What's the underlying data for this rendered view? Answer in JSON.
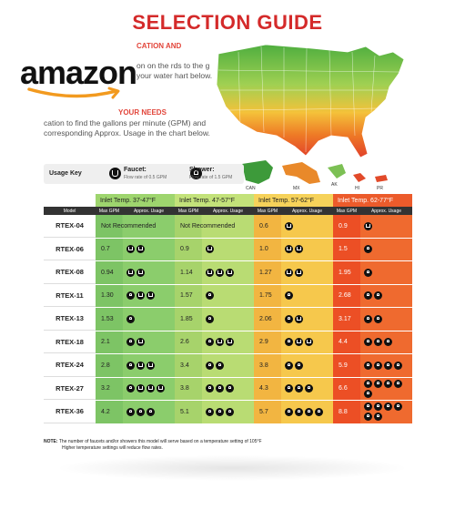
{
  "title": "SELECTION GUIDE",
  "amazon_logo_text": "amazon",
  "intro": {
    "heading1": "CATION AND",
    "para1": "on on the rds to the g your water hart below.",
    "heading2": "YOUR NEEDS",
    "para2": "cation to find the gallons per minute (GPM) and corresponding Approx. Usage in the chart below."
  },
  "map_labels": [
    "CAN",
    "MX",
    "AK",
    "HI",
    "PR"
  ],
  "usage_key": {
    "label": "Usage Key",
    "faucet_label": "Faucet:",
    "faucet_rate": "Flow rate of 0.5 GPM",
    "shower_label": "Shower:",
    "shower_rate": "Flow rate of 1.5 GPM"
  },
  "table": {
    "model_header": "Model",
    "max_gpm_header": "Max GPM",
    "usage_header": "Approx. Usage",
    "bands": [
      {
        "label": "Inlet Temp. 37-47°F",
        "head": "#9ed56e",
        "gpm": "#7dc465",
        "usage": "#8bcd6c"
      },
      {
        "label": "Inlet Temp. 47-57°F",
        "head": "#c3e27a",
        "gpm": "#a7d36b",
        "usage": "#b9dc73"
      },
      {
        "label": "Inlet Temp. 57-62°F",
        "head": "#f6d25a",
        "gpm": "#f2b541",
        "usage": "#f6c84c"
      },
      {
        "label": "Inlet Temp. 62-77°F",
        "head": "#ec5b2b",
        "gpm": "#ec4f25",
        "usage": "#ef6a2f"
      }
    ],
    "not_recommended": "Not Recommended",
    "rows": [
      {
        "model": "RTEX-04",
        "gpm": [
          "",
          "",
          "0.6",
          "0.9"
        ],
        "usage": [
          "",
          "",
          "f",
          "f"
        ],
        "nr": [
          true,
          true,
          false,
          false
        ]
      },
      {
        "model": "RTEX-06",
        "gpm": [
          "0.7",
          "0.9",
          "1.0",
          "1.5"
        ],
        "usage": [
          "ff",
          "f",
          "ff",
          "s"
        ],
        "nr": [
          false,
          false,
          false,
          false
        ]
      },
      {
        "model": "RTEX-08",
        "gpm": [
          "0.94",
          "1.14",
          "1.27",
          "1.95"
        ],
        "usage": [
          "ff",
          "fff",
          "ff",
          "s"
        ],
        "nr": [
          false,
          false,
          false,
          false
        ]
      },
      {
        "model": "RTEX-11",
        "gpm": [
          "1.30",
          "1.57",
          "1.75",
          "2.68"
        ],
        "usage": [
          "sff",
          "s",
          "s",
          "ss"
        ],
        "nr": [
          false,
          false,
          false,
          false
        ]
      },
      {
        "model": "RTEX-13",
        "gpm": [
          "1.53",
          "1.85",
          "2.06",
          "3.17"
        ],
        "usage": [
          "s",
          "s",
          "sf",
          "ss"
        ],
        "nr": [
          false,
          false,
          false,
          false
        ]
      },
      {
        "model": "RTEX-18",
        "gpm": [
          "2.1",
          "2.6",
          "2.9",
          "4.4"
        ],
        "usage": [
          "sf",
          "sff",
          "sff",
          "sss"
        ],
        "nr": [
          false,
          false,
          false,
          false
        ]
      },
      {
        "model": "RTEX-24",
        "gpm": [
          "2.8",
          "3.4",
          "3.8",
          "5.9"
        ],
        "usage": [
          "sff",
          "ss",
          "ss",
          "ssss"
        ],
        "nr": [
          false,
          false,
          false,
          false
        ]
      },
      {
        "model": "RTEX-27",
        "gpm": [
          "3.2",
          "3.8",
          "4.3",
          "6.6"
        ],
        "usage": [
          "sfff",
          "sss",
          "sss",
          "sssss"
        ],
        "nr": [
          false,
          false,
          false,
          false
        ]
      },
      {
        "model": "RTEX-36",
        "gpm": [
          "4.2",
          "5.1",
          "5.7",
          "8.8"
        ],
        "usage": [
          "sss",
          "sss",
          "ssss",
          "ssssss"
        ],
        "nr": [
          false,
          false,
          false,
          false
        ]
      }
    ]
  },
  "note": {
    "label": "NOTE:",
    "line1": "The number of faucets and/or showers this model will serve based on a temperature setting of 105°F",
    "line2": "Higher temperature settings will reduce flow rates."
  }
}
